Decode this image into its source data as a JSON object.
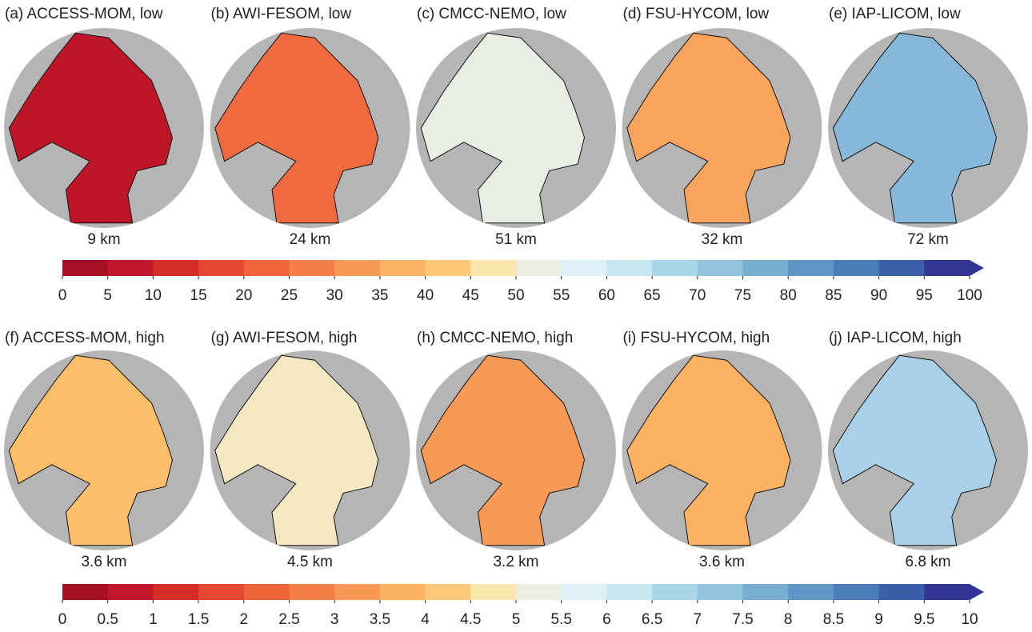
{
  "panels": [
    {
      "title": "(a) ACCESS-MOM, low",
      "resolution": "9 km",
      "color": "#be1628"
    },
    {
      "title": "(b) AWI-FESOM, low",
      "resolution": "24 km",
      "color": "#ef6a3f"
    },
    {
      "title": "(c) CMCC-NEMO, low",
      "resolution": "51 km",
      "color": "#e8eee4"
    },
    {
      "title": "(d) FSU-HYCOM, low",
      "resolution": "32 km",
      "color": "#f8a45c"
    },
    {
      "title": "(e) IAP-LICOM, low",
      "resolution": "72 km",
      "color": "#86b8da"
    },
    {
      "title": "(f) ACCESS-MOM, high",
      "resolution": "3.6 km",
      "color": "#fbbf6b"
    },
    {
      "title": "(g) AWI-FESOM, high",
      "resolution": "4.5 km",
      "color": "#f5e8c0"
    },
    {
      "title": "(h) CMCC-NEMO, high",
      "resolution": "3.2 km",
      "color": "#f89955"
    },
    {
      "title": "(i) FSU-HYCOM, high",
      "resolution": "3.6 km",
      "color": "#fbb263"
    },
    {
      "title": "(j) IAP-LICOM, high",
      "resolution": "6.8 km",
      "color": "#a8d0e6"
    }
  ],
  "colorbars": [
    {
      "ticks": [
        0,
        5,
        10,
        15,
        20,
        25,
        30,
        35,
        40,
        45,
        50,
        55,
        60,
        65,
        70,
        75,
        80,
        85,
        90,
        95,
        100
      ],
      "colors": [
        "#a50f25",
        "#c0182b",
        "#d42d27",
        "#e44832",
        "#f0643c",
        "#f57f49",
        "#f89a55",
        "#fbb263",
        "#fcc878",
        "#fbe6ae",
        "#e9ede2",
        "#ddf0f6",
        "#c6e6f0",
        "#abd6e8",
        "#92c4de",
        "#78aed2",
        "#5f96c6",
        "#4a7cb8",
        "#3a5ea8",
        "#313695"
      ]
    },
    {
      "ticks": [
        0,
        0.5,
        1,
        1.5,
        2,
        2.5,
        3,
        3.5,
        4,
        4.5,
        5,
        5.5,
        6,
        6.5,
        7,
        7.5,
        8,
        8.5,
        9,
        9.5,
        10
      ],
      "colors": [
        "#a50f25",
        "#c0182b",
        "#d42d27",
        "#e44832",
        "#f0643c",
        "#f57f49",
        "#f89a55",
        "#fbb263",
        "#fcc878",
        "#fbe6ae",
        "#e9ede2",
        "#ddf0f6",
        "#c6e6f0",
        "#abd6e8",
        "#92c4de",
        "#78aed2",
        "#5f96c6",
        "#4a7cb8",
        "#3a5ea8",
        "#313695"
      ]
    }
  ]
}
